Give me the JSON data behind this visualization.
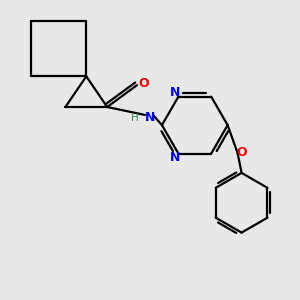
{
  "bg_color": "#e8e8e8",
  "bond_color": "#000000",
  "N_color": "#0000ff",
  "O_color": "#ff0000",
  "H_color": "#2e8b57",
  "line_width": 1.6,
  "dbo": 0.035,
  "xlim": [
    0,
    3.0
  ],
  "ylim": [
    0,
    3.0
  ]
}
